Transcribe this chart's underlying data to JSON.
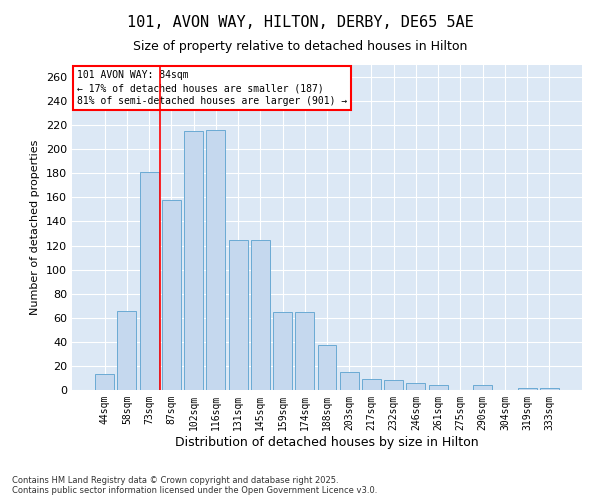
{
  "title_line1": "101, AVON WAY, HILTON, DERBY, DE65 5AE",
  "title_line2": "Size of property relative to detached houses in Hilton",
  "xlabel": "Distribution of detached houses by size in Hilton",
  "ylabel": "Number of detached properties",
  "categories": [
    "44sqm",
    "58sqm",
    "73sqm",
    "87sqm",
    "102sqm",
    "116sqm",
    "131sqm",
    "145sqm",
    "159sqm",
    "174sqm",
    "188sqm",
    "203sqm",
    "217sqm",
    "232sqm",
    "246sqm",
    "261sqm",
    "275sqm",
    "290sqm",
    "304sqm",
    "319sqm",
    "333sqm"
  ],
  "values": [
    13,
    66,
    181,
    158,
    215,
    216,
    125,
    125,
    65,
    65,
    37,
    15,
    9,
    8,
    6,
    4,
    0,
    4,
    0,
    2,
    2
  ],
  "bar_color": "#c5d8ee",
  "bar_edge_color": "#6aaad4",
  "vline_index": 2.5,
  "vline_color": "red",
  "annotation_text": "101 AVON WAY: 84sqm\n← 17% of detached houses are smaller (187)\n81% of semi-detached houses are larger (901) →",
  "annotation_box_color": "white",
  "annotation_box_edge_color": "red",
  "footnote": "Contains HM Land Registry data © Crown copyright and database right 2025.\nContains public sector information licensed under the Open Government Licence v3.0.",
  "ylim": [
    0,
    270
  ],
  "background_color": "#dce8f5",
  "grid_color": "white",
  "title_fontsize": 11,
  "subtitle_fontsize": 9,
  "ylabel_fontsize": 8,
  "xlabel_fontsize": 9,
  "tick_fontsize": 7,
  "ytick_fontsize": 8,
  "annot_fontsize": 7,
  "footnote_fontsize": 6
}
